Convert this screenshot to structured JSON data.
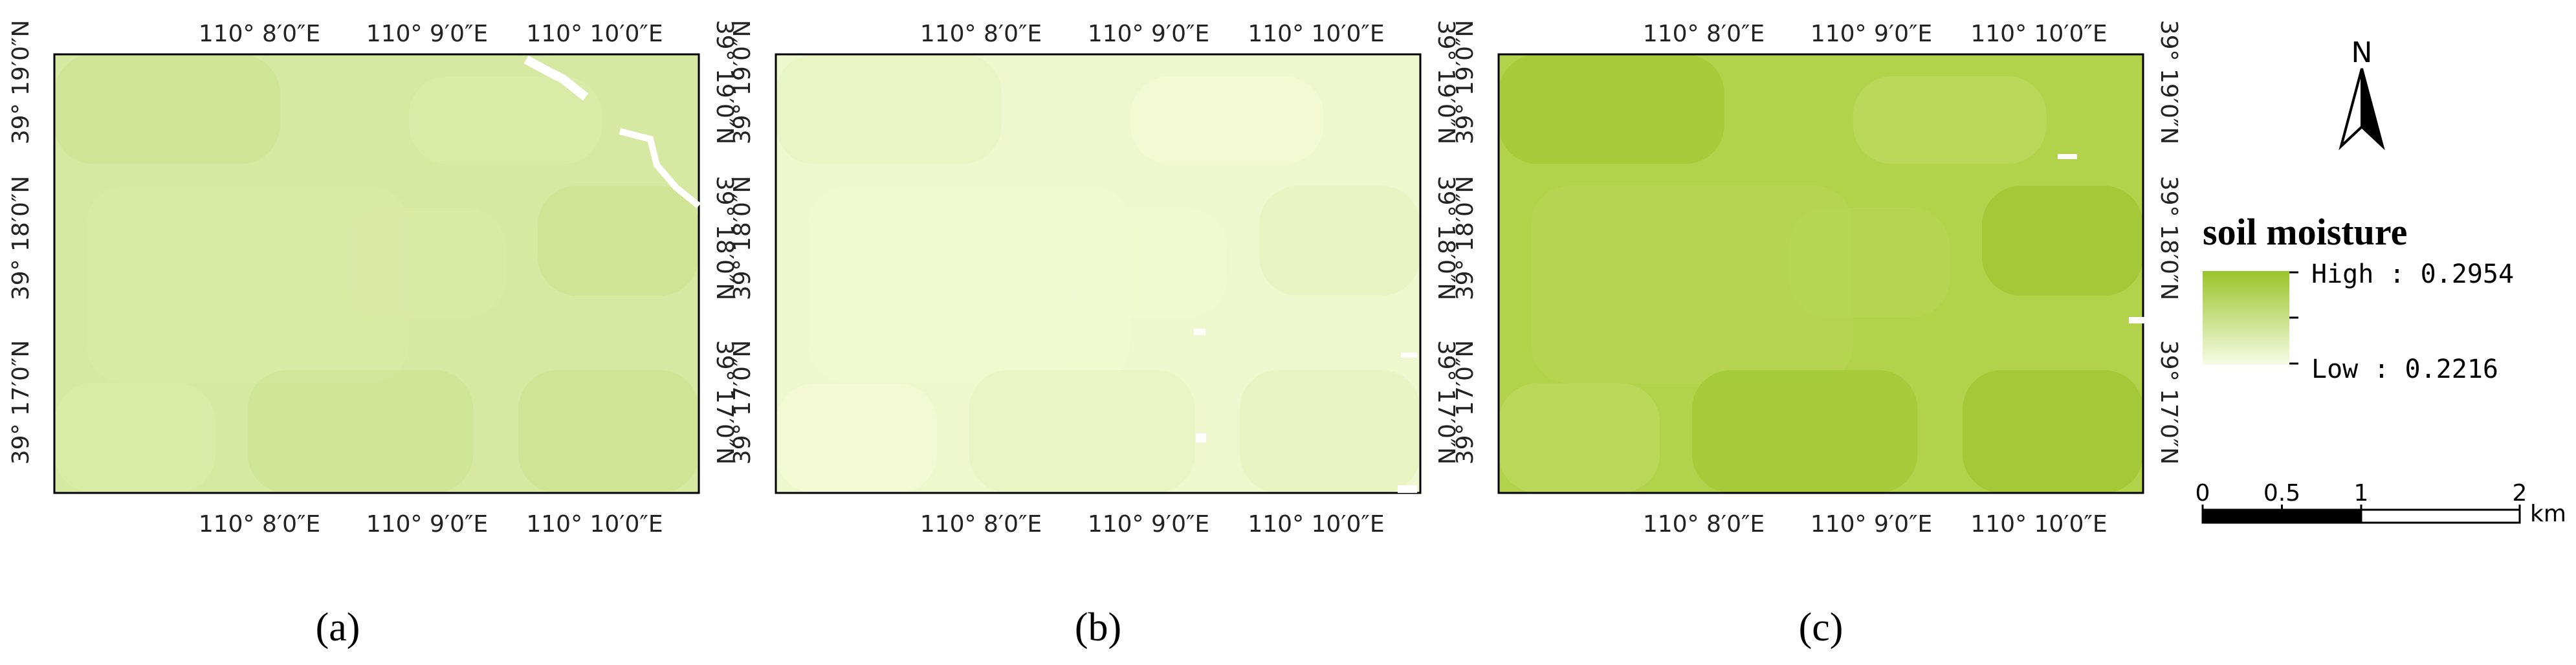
{
  "panels": [
    {
      "caption": "(a)"
    },
    {
      "caption": "(b)"
    },
    {
      "caption": "(c)"
    }
  ],
  "longitude_labels": [
    "110° 8′0″E",
    "110° 9′0″E",
    "110° 10′0″E"
  ],
  "latitude_labels": [
    "39° 19′0″N",
    "39° 18′0″N",
    "39° 17′0″N"
  ],
  "legend": {
    "title": "soil moisture",
    "high": "High : 0.2954",
    "low": "Low : 0.2216"
  },
  "north_arrow": {
    "label": "N"
  },
  "scale_bar": {
    "ticks": [
      0,
      0.5,
      1,
      2
    ],
    "unit": "km"
  }
}
